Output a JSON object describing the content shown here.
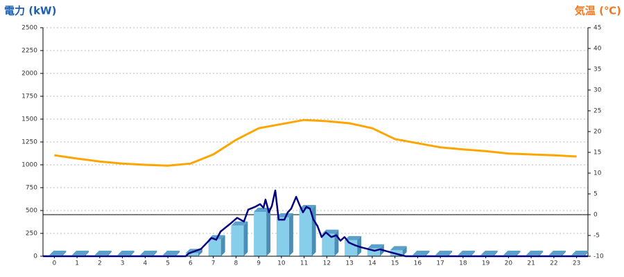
{
  "chart_data": {
    "type": "combo",
    "y_title": "電力 (kW)",
    "y2_title": "気温 (℃)",
    "categories": [
      "0",
      "1",
      "2",
      "3",
      "4",
      "5",
      "6",
      "7",
      "8",
      "9",
      "10",
      "11",
      "12",
      "13",
      "14",
      "15",
      "16",
      "17",
      "18",
      "19",
      "20",
      "21",
      "22",
      "23"
    ],
    "xlim": [
      -0.5,
      23.5
    ],
    "ylim": [
      0,
      2500
    ],
    "yticks": [
      0,
      250,
      500,
      750,
      1000,
      1250,
      1500,
      1750,
      2000,
      2250,
      2500
    ],
    "y2lim": [
      -10,
      45
    ],
    "y2ticks": [
      -10,
      -5,
      0,
      5,
      10,
      15,
      20,
      25,
      30,
      35,
      40,
      45
    ],
    "grid": true,
    "bars": {
      "color": "#87ceeb",
      "values": [
        0,
        0,
        0,
        0,
        0,
        0,
        20,
        170,
        320,
        470,
        410,
        500,
        230,
        160,
        70,
        50,
        0,
        0,
        0,
        0,
        0,
        0,
        0,
        0
      ]
    },
    "power_line": {
      "color": "#000080",
      "x": [
        -0.5,
        5.79,
        5.91,
        6.46,
        6.92,
        7.13,
        7.32,
        7.77,
        8.05,
        8.35,
        8.54,
        8.84,
        9.06,
        9.21,
        9.3,
        9.45,
        9.58,
        9.73,
        9.88,
        10.13,
        10.28,
        10.43,
        10.65,
        10.8,
        10.95,
        11.1,
        11.26,
        11.41,
        11.59,
        11.77,
        11.96,
        12.2,
        12.42,
        12.6,
        12.78,
        12.97,
        13.24,
        13.48,
        13.79,
        14.1,
        14.34,
        14.71,
        15.16,
        15.47,
        23.5
      ],
      "values": [
        0,
        0,
        30,
        80,
        200,
        180,
        270,
        360,
        420,
        380,
        510,
        540,
        570,
        530,
        620,
        480,
        550,
        720,
        400,
        400,
        480,
        520,
        650,
        560,
        480,
        540,
        520,
        400,
        330,
        210,
        260,
        210,
        230,
        170,
        210,
        150,
        120,
        100,
        80,
        60,
        75,
        50,
        20,
        0,
        0
      ]
    },
    "temperature": {
      "color": "#ffa500",
      "axis": "y2",
      "values": [
        14.3,
        13.5,
        12.8,
        12.3,
        12,
        11.8,
        12.3,
        14.5,
        18,
        20.8,
        21.8,
        22.8,
        22.5,
        22,
        20.8,
        18.2,
        17.2,
        16.2,
        15.7,
        15.3,
        14.7,
        14.5,
        14.3,
        14
      ]
    }
  }
}
